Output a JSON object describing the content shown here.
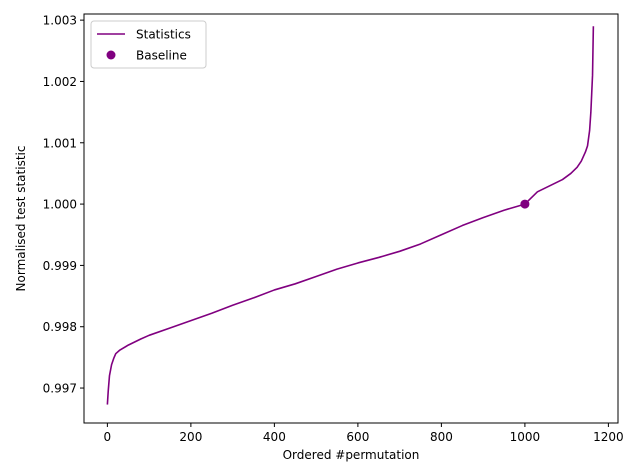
{
  "chart_data": {
    "type": "line",
    "title": "",
    "xlabel": "Ordered #permutation",
    "ylabel": "Normalised test statistic",
    "xlim": [
      -56,
      1223
    ],
    "ylim": [
      0.99643,
      1.0031
    ],
    "xticks": [
      0,
      200,
      400,
      600,
      800,
      1000,
      1200
    ],
    "xtick_labels": [
      "0",
      "200",
      "400",
      "600",
      "800",
      "1000",
      "1200"
    ],
    "yticks": [
      0.997,
      0.998,
      0.999,
      1.0,
      1.001,
      1.002,
      1.003
    ],
    "ytick_labels": [
      "0.997",
      "0.998",
      "0.999",
      "1.000",
      "1.001",
      "1.002",
      "1.003"
    ],
    "grid": false,
    "legend": {
      "placement": "upper-left",
      "entries": [
        {
          "label": "Statistics",
          "marker": "line"
        },
        {
          "label": "Baseline",
          "marker": "circle"
        }
      ]
    },
    "series": [
      {
        "name": "Statistics",
        "color": "#800080",
        "x": [
          0,
          2,
          5,
          10,
          15,
          20,
          30,
          50,
          80,
          100,
          150,
          200,
          250,
          300,
          350,
          400,
          450,
          500,
          550,
          600,
          650,
          700,
          750,
          800,
          850,
          900,
          950,
          1000,
          1030,
          1060,
          1090,
          1110,
          1125,
          1135,
          1145,
          1150,
          1155,
          1158,
          1160,
          1162,
          1163,
          1164
        ],
        "y": [
          0.99673,
          0.99695,
          0.9972,
          0.99738,
          0.99748,
          0.99756,
          0.99762,
          0.9977,
          0.9978,
          0.99786,
          0.99798,
          0.9981,
          0.99822,
          0.99835,
          0.99847,
          0.9986,
          0.9987,
          0.99882,
          0.99894,
          0.99904,
          0.99913,
          0.99923,
          0.99935,
          0.9995,
          0.99965,
          0.99978,
          0.9999,
          1.0,
          1.0002,
          1.0003,
          1.0004,
          1.0005,
          1.0006,
          1.0007,
          1.00085,
          1.00095,
          1.0012,
          1.0015,
          1.0018,
          1.0021,
          1.0025,
          1.0029
        ]
      },
      {
        "name": "Baseline",
        "color": "#800080",
        "x": [
          1000
        ],
        "y": [
          1.0
        ]
      }
    ]
  }
}
